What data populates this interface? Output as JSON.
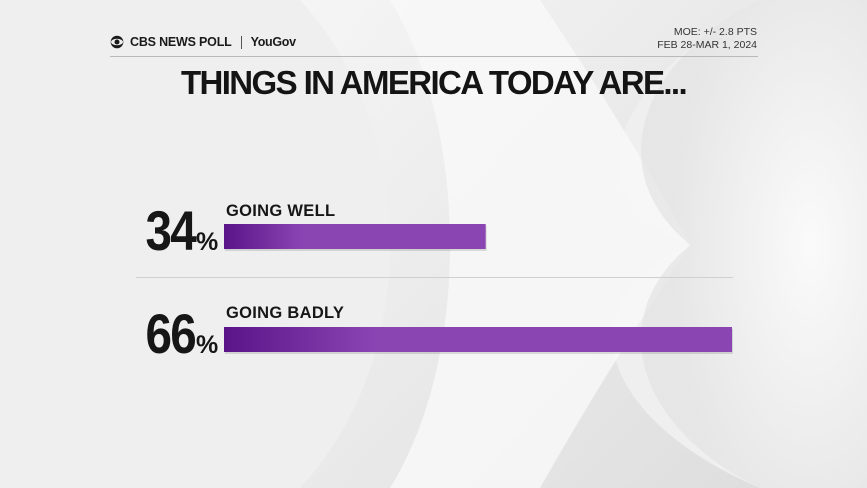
{
  "header": {
    "brand": "CBS NEWS POLL",
    "partner": "YouGov",
    "moe": "MOE: +/- 2.8 PTS",
    "dates": "FEB 28-MAR 1, 2024"
  },
  "colors": {
    "bar_start": "#5a1488",
    "bar_end": "#8b45b3",
    "text": "#161616"
  },
  "chart_data": {
    "type": "bar",
    "orientation": "horizontal",
    "title": "THINGS IN AMERICA TODAY ARE...",
    "categories": [
      "GOING WELL",
      "GOING BADLY"
    ],
    "values": [
      34,
      66
    ],
    "value_labels": [
      "34",
      "66"
    ],
    "unit": "%",
    "xlim": [
      0,
      66
    ],
    "grid": false,
    "legend": "none"
  }
}
